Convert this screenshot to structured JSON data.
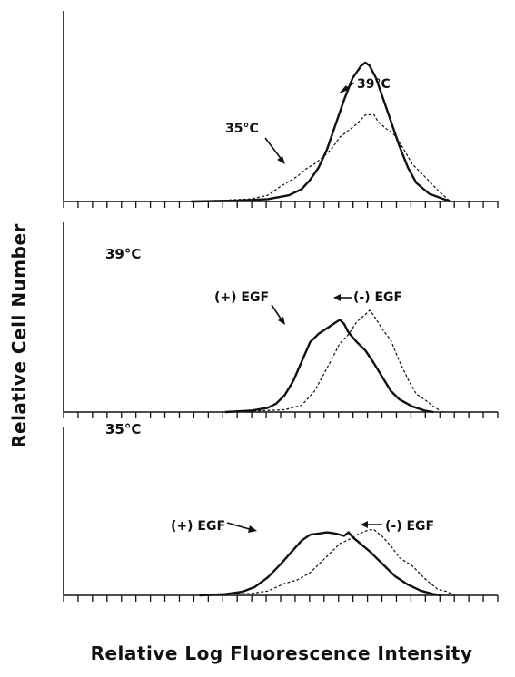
{
  "chart_data": {
    "type": "line",
    "ylabel": "Relative Cell Number",
    "xlabel": "Relative Log Fluorescence Intensity",
    "xlim": [
      0,
      100
    ],
    "ylim": [
      0,
      100
    ],
    "grid": false,
    "x_ticks": 30,
    "panels": [
      {
        "label": "",
        "series": [
          {
            "name": "39°C",
            "style": "solid",
            "points": [
              [
                30,
                0
              ],
              [
                40,
                0.5
              ],
              [
                48,
                1.5
              ],
              [
                53,
                4
              ],
              [
                56,
                8
              ],
              [
                58,
                14
              ],
              [
                60,
                22
              ],
              [
                62,
                34
              ],
              [
                64,
                50
              ],
              [
                66,
                66
              ],
              [
                68,
                80
              ],
              [
                70,
                88
              ],
              [
                71,
                90
              ],
              [
                72,
                88
              ],
              [
                73.5,
                80
              ],
              [
                75,
                68
              ],
              [
                77,
                52
              ],
              [
                79,
                36
              ],
              [
                81,
                22
              ],
              [
                83,
                12
              ],
              [
                86,
                5
              ],
              [
                89,
                2
              ],
              [
                91,
                0
              ]
            ]
          },
          {
            "name": "35°C",
            "style": "dashed",
            "points": [
              [
                30,
                0
              ],
              [
                38,
                0.5
              ],
              [
                44,
                2
              ],
              [
                48,
                5
              ],
              [
                51,
                9
              ],
              [
                53,
                13
              ],
              [
                55,
                17
              ],
              [
                57,
                20
              ],
              [
                59,
                24
              ],
              [
                61,
                29
              ],
              [
                63,
                35
              ],
              [
                65,
                41
              ],
              [
                67,
                46
              ],
              [
                69,
                51
              ],
              [
                71,
                55
              ],
              [
                73,
                56
              ],
              [
                74,
                52
              ],
              [
                76,
                48
              ],
              [
                78,
                42
              ],
              [
                80,
                34
              ],
              [
                82,
                25
              ],
              [
                85,
                15
              ],
              [
                88,
                7
              ],
              [
                91,
                0
              ]
            ]
          }
        ],
        "annotations": [
          {
            "text": "39°C"
          },
          {
            "text": "35°C"
          }
        ]
      },
      {
        "label": "39°C",
        "series": [
          {
            "name": "(+) EGF",
            "style": "solid",
            "points": [
              [
                38,
                0
              ],
              [
                44,
                1
              ],
              [
                48,
                3
              ],
              [
                50,
                6
              ],
              [
                52,
                12
              ],
              [
                54,
                22
              ],
              [
                56,
                36
              ],
              [
                58,
                50
              ],
              [
                60,
                56
              ],
              [
                62,
                60
              ],
              [
                63,
                62
              ],
              [
                64,
                64
              ],
              [
                65,
                66
              ],
              [
                66,
                63
              ],
              [
                67,
                57
              ],
              [
                69,
                50
              ],
              [
                71,
                44
              ],
              [
                73,
                35
              ],
              [
                75,
                25
              ],
              [
                77,
                15
              ],
              [
                79,
                9
              ],
              [
                82,
                4
              ],
              [
                85,
                1
              ],
              [
                87,
                0
              ]
            ]
          },
          {
            "name": "(-) EGF",
            "style": "dashed",
            "points": [
              [
                38,
                0
              ],
              [
                46,
                0.5
              ],
              [
                52,
                2
              ],
              [
                56,
                6
              ],
              [
                59,
                14
              ],
              [
                61,
                26
              ],
              [
                63,
                38
              ],
              [
                65,
                48
              ],
              [
                67,
                55
              ],
              [
                69,
                65
              ],
              [
                71,
                71
              ],
              [
                72,
                72
              ],
              [
                73,
                69
              ],
              [
                75,
                60
              ],
              [
                77,
                50
              ],
              [
                79,
                36
              ],
              [
                81,
                24
              ],
              [
                83,
                14
              ],
              [
                85,
                8
              ],
              [
                87,
                4
              ],
              [
                89,
                1
              ],
              [
                90,
                0
              ]
            ]
          }
        ],
        "annotations": [
          {
            "text": "(+) EGF"
          },
          {
            "text": "(-) EGF"
          }
        ]
      },
      {
        "label": "35°C",
        "series": [
          {
            "name": "(+) EGF",
            "style": "solid",
            "points": [
              [
                32,
                0
              ],
              [
                38,
                1
              ],
              [
                42,
                3
              ],
              [
                45,
                7
              ],
              [
                48,
                15
              ],
              [
                51,
                26
              ],
              [
                54,
                38
              ],
              [
                56,
                46
              ],
              [
                58,
                51
              ],
              [
                60,
                52
              ],
              [
                62,
                53
              ],
              [
                64,
                52
              ],
              [
                66,
                50
              ],
              [
                67,
                53
              ],
              [
                68,
                49
              ],
              [
                70,
                43
              ],
              [
                72,
                37
              ],
              [
                74,
                30
              ],
              [
                76,
                23
              ],
              [
                78,
                16
              ],
              [
                81,
                9
              ],
              [
                84,
                4
              ],
              [
                87,
                1
              ],
              [
                89,
                0
              ]
            ]
          },
          {
            "name": "(-) EGF",
            "style": "dashed",
            "points": [
              [
                32,
                0
              ],
              [
                38,
                0.5
              ],
              [
                44,
                2
              ],
              [
                48,
                5
              ],
              [
                52,
                9
              ],
              [
                55,
                13
              ],
              [
                58,
                20
              ],
              [
                61,
                28
              ],
              [
                63,
                36
              ],
              [
                65,
                44
              ],
              [
                67,
                48
              ],
              [
                69,
                50
              ],
              [
                71,
                54
              ],
              [
                72,
                56
              ],
              [
                73,
                54
              ],
              [
                75,
                49
              ],
              [
                77,
                42
              ],
              [
                79,
                33
              ],
              [
                82,
                24
              ],
              [
                85,
                14
              ],
              [
                88,
                6
              ],
              [
                90,
                2
              ],
              [
                92,
                0
              ]
            ]
          }
        ],
        "annotations": [
          {
            "text": "(+) EGF"
          },
          {
            "text": "(-) EGF"
          }
        ]
      }
    ]
  }
}
